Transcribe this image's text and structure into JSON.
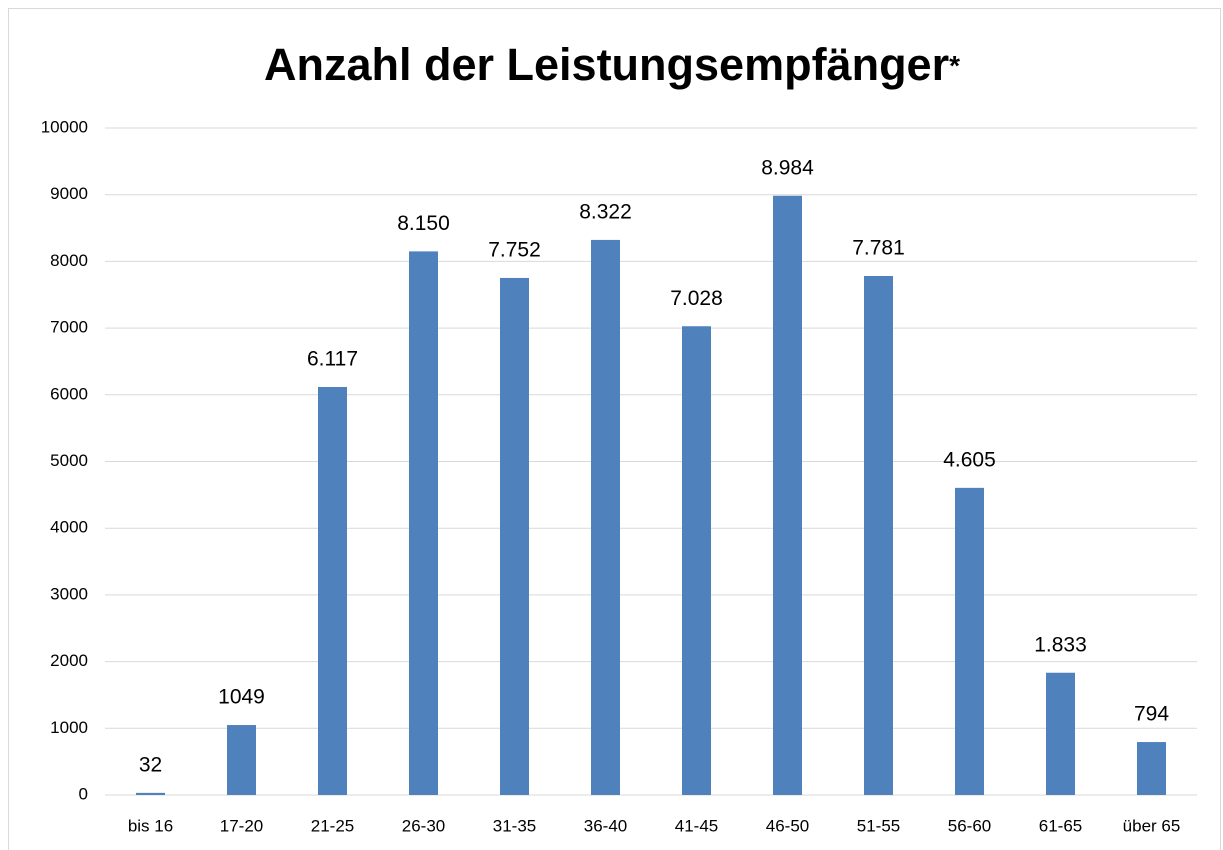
{
  "chart_data": {
    "type": "bar",
    "title": "Anzahl der Leistungsempfänger",
    "title_suffix": "*",
    "categories": [
      "bis 16",
      "17-20",
      "21-25",
      "26-30",
      "31-35",
      "36-40",
      "41-45",
      "46-50",
      "51-55",
      "56-60",
      "61-65",
      "über 65"
    ],
    "values": [
      32,
      1049,
      6117,
      8150,
      7752,
      8322,
      7028,
      8984,
      7781,
      4605,
      1833,
      794
    ],
    "value_labels": [
      "32",
      "1049",
      "6.117",
      "8.150",
      "7.752",
      "8.322",
      "7.028",
      "8.984",
      "7.781",
      "4.605",
      "1.833",
      "794"
    ],
    "color": "#4f81bd",
    "ylim": [
      0,
      10000
    ],
    "yticks": [
      0,
      1000,
      2000,
      3000,
      4000,
      5000,
      6000,
      7000,
      8000,
      9000,
      10000
    ],
    "grid": true
  }
}
